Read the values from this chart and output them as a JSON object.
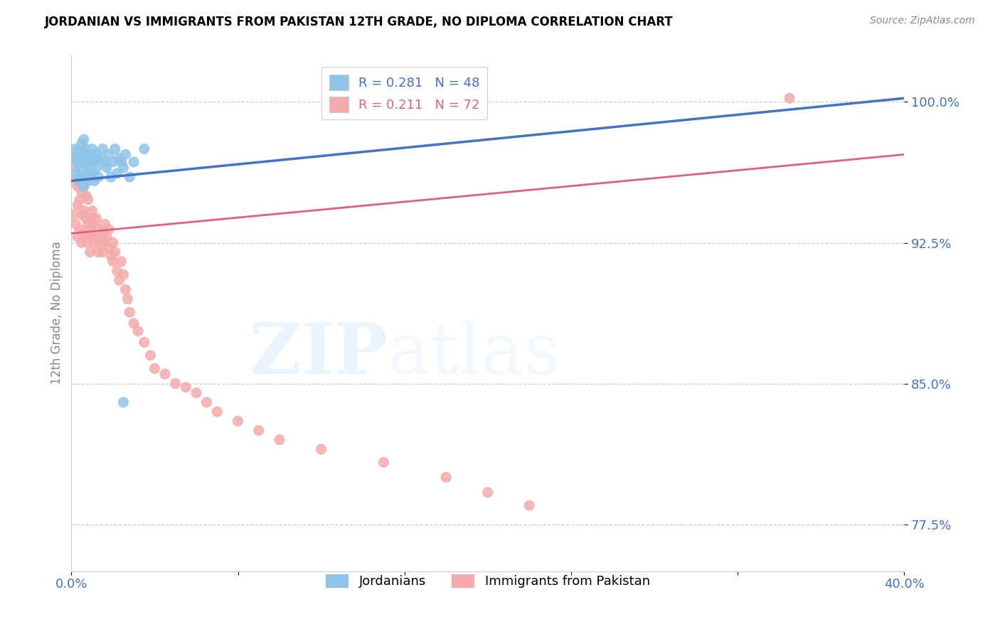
{
  "title": "JORDANIAN VS IMMIGRANTS FROM PAKISTAN 12TH GRADE, NO DIPLOMA CORRELATION CHART",
  "source": "Source: ZipAtlas.com",
  "ylabel": "12th Grade, No Diploma",
  "legend_blue": "R = 0.281   N = 48",
  "legend_pink": "R = 0.211   N = 72",
  "legend_label_blue": "Jordanians",
  "legend_label_pink": "Immigrants from Pakistan",
  "blue_color": "#8ec4e8",
  "pink_color": "#f4aaaa",
  "blue_line_color": "#4472c4",
  "pink_line_color": "#e06080",
  "xlim": [
    0.0,
    0.4
  ],
  "ylim": [
    0.75,
    1.025
  ],
  "blue_line_y0": 0.958,
  "blue_line_y1": 1.002,
  "pink_line_y0": 0.93,
  "pink_line_y1": 0.972,
  "jordanians_x": [
    0.001,
    0.002,
    0.002,
    0.003,
    0.003,
    0.004,
    0.004,
    0.004,
    0.005,
    0.005,
    0.005,
    0.006,
    0.006,
    0.006,
    0.006,
    0.007,
    0.007,
    0.007,
    0.008,
    0.008,
    0.008,
    0.009,
    0.009,
    0.01,
    0.01,
    0.01,
    0.011,
    0.011,
    0.012,
    0.012,
    0.013,
    0.014,
    0.015,
    0.016,
    0.017,
    0.018,
    0.019,
    0.02,
    0.021,
    0.022,
    0.023,
    0.024,
    0.025,
    0.026,
    0.028,
    0.03,
    0.035,
    0.025
  ],
  "jordanians_y": [
    0.97,
    0.975,
    0.962,
    0.968,
    0.972,
    0.958,
    0.974,
    0.965,
    0.96,
    0.97,
    0.978,
    0.955,
    0.968,
    0.972,
    0.98,
    0.962,
    0.97,
    0.975,
    0.958,
    0.965,
    0.972,
    0.96,
    0.968,
    0.975,
    0.962,
    0.97,
    0.968,
    0.958,
    0.972,
    0.965,
    0.96,
    0.97,
    0.975,
    0.968,
    0.965,
    0.972,
    0.96,
    0.968,
    0.975,
    0.962,
    0.97,
    0.968,
    0.965,
    0.972,
    0.96,
    0.968,
    0.975,
    0.84
  ],
  "pakistan_x": [
    0.001,
    0.001,
    0.002,
    0.002,
    0.003,
    0.003,
    0.003,
    0.004,
    0.004,
    0.004,
    0.005,
    0.005,
    0.005,
    0.006,
    0.006,
    0.006,
    0.007,
    0.007,
    0.007,
    0.008,
    0.008,
    0.008,
    0.009,
    0.009,
    0.01,
    0.01,
    0.01,
    0.011,
    0.011,
    0.012,
    0.012,
    0.013,
    0.013,
    0.014,
    0.015,
    0.015,
    0.016,
    0.016,
    0.017,
    0.018,
    0.018,
    0.019,
    0.02,
    0.02,
    0.021,
    0.022,
    0.023,
    0.024,
    0.025,
    0.026,
    0.027,
    0.028,
    0.03,
    0.032,
    0.035,
    0.038,
    0.04,
    0.045,
    0.05,
    0.055,
    0.06,
    0.065,
    0.07,
    0.08,
    0.09,
    0.1,
    0.12,
    0.15,
    0.18,
    0.2,
    0.22,
    0.345
  ],
  "pakistan_y": [
    0.958,
    0.94,
    0.935,
    0.965,
    0.928,
    0.945,
    0.955,
    0.932,
    0.948,
    0.96,
    0.925,
    0.94,
    0.952,
    0.93,
    0.942,
    0.955,
    0.928,
    0.938,
    0.95,
    0.925,
    0.935,
    0.948,
    0.92,
    0.932,
    0.938,
    0.928,
    0.942,
    0.925,
    0.935,
    0.928,
    0.938,
    0.92,
    0.932,
    0.925,
    0.93,
    0.92,
    0.925,
    0.935,
    0.928,
    0.922,
    0.932,
    0.918,
    0.925,
    0.915,
    0.92,
    0.91,
    0.905,
    0.915,
    0.908,
    0.9,
    0.895,
    0.888,
    0.882,
    0.878,
    0.872,
    0.865,
    0.858,
    0.855,
    0.85,
    0.848,
    0.845,
    0.84,
    0.835,
    0.83,
    0.825,
    0.82,
    0.815,
    0.808,
    0.8,
    0.792,
    0.785,
    1.002
  ]
}
